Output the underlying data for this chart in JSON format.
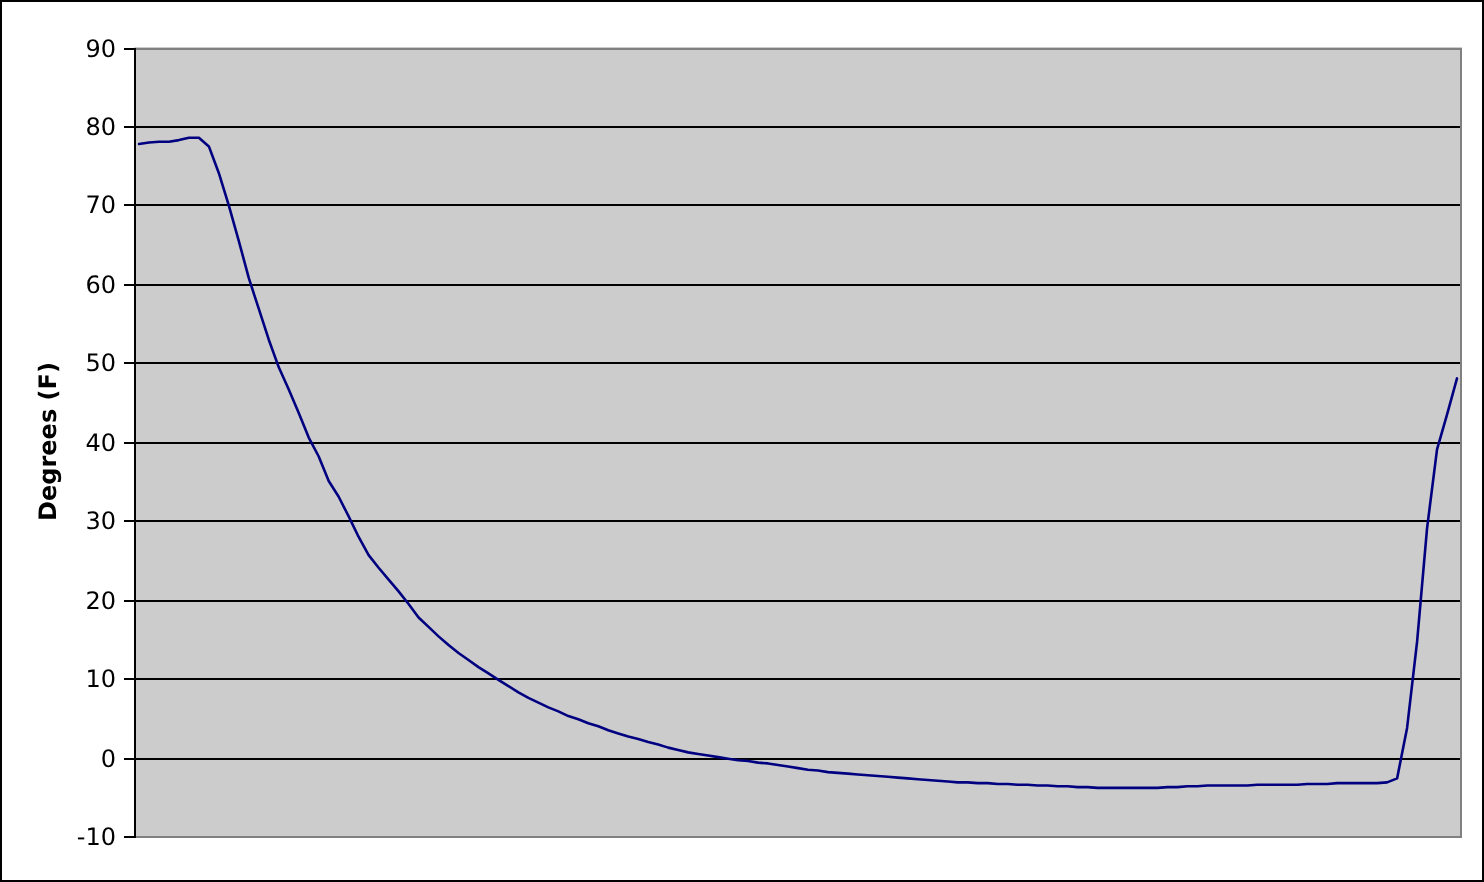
{
  "chart_data": {
    "type": "line",
    "ylabel": "Degrees (F)",
    "color": "#000080",
    "grid": "y",
    "ylim": [
      -10,
      90
    ],
    "yticks": [
      -10,
      0,
      10,
      20,
      30,
      40,
      50,
      60,
      70,
      80,
      90
    ],
    "categories": [
      null,
      null,
      null,
      null,
      null,
      null,
      null,
      null,
      null,
      null,
      null,
      null,
      null,
      null,
      null,
      null,
      null,
      null,
      null,
      null,
      null,
      null,
      null,
      null,
      null,
      null,
      null,
      null,
      null,
      null,
      null,
      null,
      null,
      null,
      null,
      null,
      null,
      null,
      null,
      null,
      null,
      null,
      null,
      null,
      null,
      null,
      null,
      null,
      null,
      null,
      null,
      null,
      null,
      null,
      null,
      null,
      null,
      null,
      null,
      null,
      null,
      null,
      null,
      null,
      null,
      null,
      null,
      null,
      null,
      null,
      null,
      null,
      null,
      null,
      null,
      null,
      null,
      null,
      null,
      null,
      null,
      null,
      null,
      null,
      null,
      null,
      null,
      null,
      null,
      null,
      null,
      null,
      null,
      null,
      null,
      null,
      null,
      null,
      null,
      null,
      null,
      null,
      null,
      null,
      null,
      null,
      null,
      null,
      null,
      null,
      null,
      null,
      null,
      null,
      null,
      null,
      null,
      null,
      null,
      null,
      null,
      null,
      null,
      null,
      null,
      null,
      null,
      null,
      null,
      null,
      null,
      null,
      null
    ],
    "values": [
      77.7,
      77.9,
      78.0,
      78.0,
      78.2,
      78.5,
      78.5,
      77.4,
      74.0,
      69.9,
      65.4,
      60.7,
      56.8,
      52.9,
      49.4,
      46.6,
      43.6,
      40.5,
      38.1,
      35.0,
      33.0,
      30.5,
      27.9,
      25.6,
      24.0,
      22.5,
      21.0,
      19.4,
      17.7,
      16.5,
      15.3,
      14.2,
      13.2,
      12.3,
      11.4,
      10.6,
      9.8,
      9.0,
      8.2,
      7.5,
      6.9,
      6.3,
      5.8,
      5.2,
      4.8,
      4.3,
      3.9,
      3.4,
      3.0,
      2.6,
      2.3,
      1.9,
      1.6,
      1.2,
      0.9,
      0.6,
      0.4,
      0.2,
      0.0,
      -0.2,
      -0.4,
      -0.5,
      -0.7,
      -0.8,
      -1.0,
      -1.2,
      -1.4,
      -1.6,
      -1.7,
      -1.9,
      -2.0,
      -2.1,
      -2.2,
      -2.3,
      -2.4,
      -2.5,
      -2.6,
      -2.7,
      -2.8,
      -2.9,
      -3.0,
      -3.1,
      -3.2,
      -3.2,
      -3.3,
      -3.3,
      -3.4,
      -3.4,
      -3.5,
      -3.5,
      -3.6,
      -3.6,
      -3.7,
      -3.7,
      -3.8,
      -3.8,
      -3.9,
      -3.9,
      -3.9,
      -3.9,
      -3.9,
      -3.9,
      -3.9,
      -3.8,
      -3.8,
      -3.7,
      -3.7,
      -3.6,
      -3.6,
      -3.6,
      -3.6,
      -3.6,
      -3.5,
      -3.5,
      -3.5,
      -3.5,
      -3.5,
      -3.4,
      -3.4,
      -3.4,
      -3.3,
      -3.3,
      -3.3,
      -3.3,
      -3.3,
      -3.2,
      -2.7,
      3.7,
      14.6,
      29.0,
      39.0,
      43.4,
      48.0
    ]
  }
}
